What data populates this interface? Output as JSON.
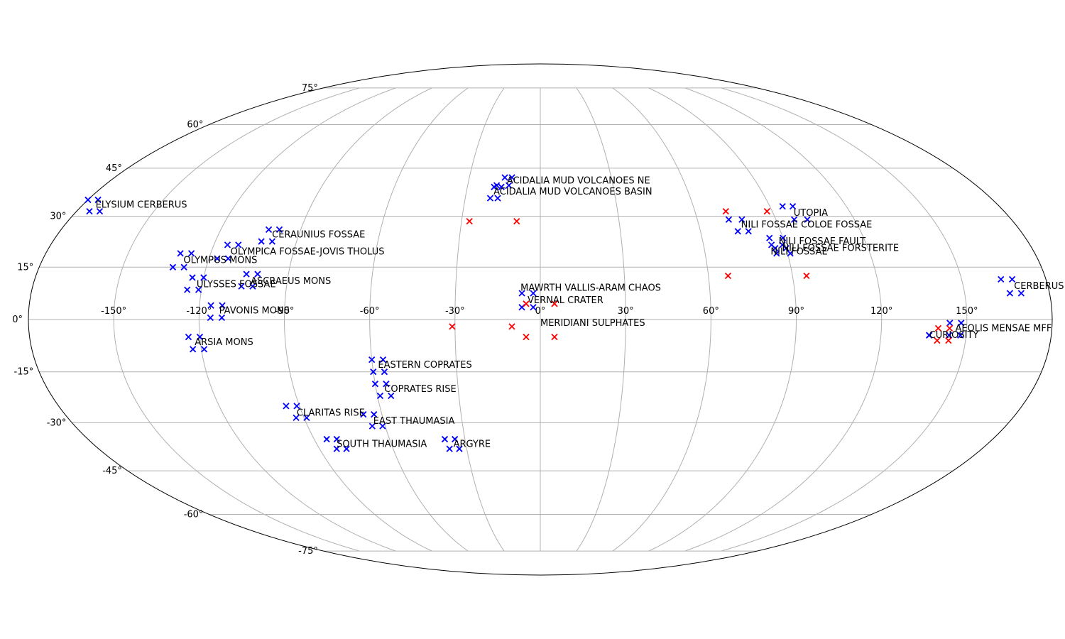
{
  "chart_data": {
    "type": "scatter",
    "projection": "mollweide",
    "grid": true,
    "x_ticks": [
      -150,
      -120,
      -90,
      -60,
      -30,
      0,
      30,
      60,
      90,
      120,
      150
    ],
    "y_ticks": [
      -75,
      -60,
      -45,
      -30,
      -15,
      0,
      15,
      30,
      45,
      60,
      75
    ],
    "x_tick_labels": [
      "-150°",
      "-120°",
      "-90°",
      "-60°",
      "-30°",
      "0°",
      "30°",
      "60°",
      "90°",
      "120°",
      "150°"
    ],
    "y_tick_labels": [
      "-75°",
      "-60°",
      "-45°",
      "-30°",
      "-15°",
      "0°",
      "15°",
      "30°",
      "45°",
      "60°",
      "75°"
    ],
    "colors": {
      "blue": "#0000ff",
      "red": "#ff0000",
      "grid": "#b0b0b0"
    },
    "marker": "x",
    "blue_groups": [
      {
        "label": "ACIDALIA MUD VOLCANOES NE",
        "lon": [
          -15,
          -12,
          -18,
          -13
        ],
        "lat": [
          42,
          42,
          39.5,
          39.5
        ],
        "label_lon": -14,
        "label_lat": 41
      },
      {
        "label": "ACIDALIA MUD VOLCANOES BASIN",
        "lon": [
          -19,
          -16,
          -20,
          -17
        ],
        "lat": [
          39,
          39,
          35.5,
          35.5
        ],
        "label_lon": -19,
        "label_lat": 37.5
      },
      {
        "label": "UTOPIA",
        "lon": [
          95,
          99,
          97,
          102
        ],
        "lat": [
          33,
          33,
          29,
          29
        ],
        "label_lon": 98,
        "label_lat": 31
      },
      {
        "label": "NILI FOSSAE COLOE FOSSAE",
        "lon": [
          72,
          77,
          74,
          78
        ],
        "lat": [
          29,
          29,
          25.5,
          25.5
        ],
        "label_lon": 76,
        "label_lat": 27.5
      },
      {
        "label": "NILI FOSSAE FAULT",
        "lon": [
          85,
          90,
          85,
          89
        ],
        "lat": [
          23.5,
          23.5,
          21.5,
          21.5
        ],
        "label_lon": 88,
        "label_lat": 22.5
      },
      {
        "label": "NILI FOSSAE FORSTERITE",
        "lon": [
          86,
          90
        ],
        "lat": [
          20.5,
          20.5
        ],
        "label_lon": 88.5,
        "label_lat": 20.5
      },
      {
        "label": "NILI FOSSAE",
        "lon": [
          86,
          91
        ],
        "lat": [
          19,
          19
        ],
        "label_lon": 84,
        "label_lat": 19.5
      },
      {
        "label": "ELYSIUM CERBERUS",
        "lon": [
          180,
          184,
          185,
          189
        ],
        "lat": [
          35,
          35,
          31.5,
          31.5
        ],
        "label_lon": 185,
        "label_lat": 33.5
      },
      {
        "label": "CERBERUS FOSSAE",
        "lon": [
          164,
          168,
          166,
          170
        ],
        "lat": [
          11.5,
          11.5,
          7.5,
          7.5
        ],
        "label_lon": 168,
        "label_lat": 9.5
      },
      {
        "label": "AEOLIS MENSAE MFF",
        "lon": [
          144,
          148,
          144,
          148
        ],
        "lat": [
          -1,
          -1,
          -4.5,
          -4.5
        ],
        "label_lon": 146,
        "label_lat": -2.5
      },
      {
        "label": "CURIOSITY",
        "lon": [
          137,
          137
        ],
        "lat": [
          -4.5,
          -4.5
        ],
        "label_lon": 137,
        "label_lat": -4.5
      },
      {
        "label": "MAWRTH VALLIS-ARAM CHAOS",
        "lon": [
          -6.5,
          -2.5,
          -6.5,
          -2.5
        ],
        "lat": [
          7.5,
          7.5,
          3.5,
          3.5
        ],
        "label_lon": -7,
        "label_lat": 9
      },
      {
        "label": "VERNAL CRATER",
        "lon": [],
        "lat": [],
        "label_lon": -4.5,
        "label_lat": 5.5
      },
      {
        "label": "MERIDIANI SULPHATES",
        "lon": [],
        "lat": [],
        "label_lon": 0,
        "label_lat": -1
      },
      {
        "label": "CERAUNIUS FOSSAE",
        "lon": [
          -102,
          -98,
          -103,
          -99
        ],
        "lat": [
          26,
          26,
          22.5,
          22.5
        ],
        "label_lon": -100,
        "label_lat": 24.5
      },
      {
        "label": "OLYMPICA FOSSAE-JOVIS THOLUS",
        "lon": [
          -115,
          -111,
          -117,
          -113
        ],
        "lat": [
          21.5,
          21.5,
          17.5,
          17.5
        ],
        "label_lon": -113,
        "label_lat": 19.5
      },
      {
        "label": "OLYMPUS MONS",
        "lon": [
          -131,
          -127,
          -132,
          -128
        ],
        "lat": [
          19,
          19,
          15,
          15
        ],
        "label_lon": -129,
        "label_lat": 17
      },
      {
        "label": "ASCRAEUS MONS",
        "lon": [
          -105,
          -101,
          -106,
          -102
        ],
        "lat": [
          13,
          13,
          9.5,
          9.5
        ],
        "label_lon": -103,
        "label_lat": 11
      },
      {
        "label": "ULYSSES FOSSAE",
        "lon": [
          -124,
          -120,
          -125,
          -121
        ],
        "lat": [
          12,
          12,
          8.5,
          8.5
        ],
        "label_lon": -122,
        "label_lat": 10
      },
      {
        "label": "PAVONIS MONS",
        "lon": [
          -116,
          -112,
          -116,
          -112
        ],
        "lat": [
          4,
          4,
          0.5,
          0.5
        ],
        "label_lon": -113,
        "label_lat": 2.5
      },
      {
        "label": "ARSIA MONS",
        "lon": [
          -124,
          -120,
          -123,
          -119
        ],
        "lat": [
          -5,
          -5,
          -8.5,
          -8.5
        ],
        "label_lon": -122,
        "label_lat": -6.5
      },
      {
        "label": "EASTERN COPRATES",
        "lon": [
          -60,
          -56,
          -60,
          -56
        ],
        "lat": [
          -11.5,
          -11.5,
          -15,
          -15
        ],
        "label_lon": -58,
        "label_lat": -13
      },
      {
        "label": "COPRATES RISE",
        "lon": [
          -60,
          -56,
          -59,
          -55
        ],
        "lat": [
          -18.5,
          -18.5,
          -22,
          -22
        ],
        "label_lon": -57,
        "label_lat": -20
      },
      {
        "label": "CLARITAS RISE",
        "lon": [
          -95,
          -91,
          -93,
          -89
        ],
        "lat": [
          -25,
          -25,
          -28.5,
          -28.5
        ],
        "label_lon": -92,
        "label_lat": -27
      },
      {
        "label": "EAST THAUMASIA",
        "lon": [
          -67,
          -63,
          -65,
          -61
        ],
        "lat": [
          -27.5,
          -27.5,
          -31,
          -31
        ],
        "label_lon": -64,
        "label_lat": -29.5
      },
      {
        "label": "SOUTH THAUMASIA",
        "lon": [
          -85,
          -81,
          -83,
          -79
        ],
        "lat": [
          -35,
          -35,
          -38,
          -38
        ],
        "label_lon": -82,
        "label_lat": -36.5
      },
      {
        "label": "ARGYRE",
        "lon": [
          -38,
          -34,
          -37,
          -33
        ],
        "lat": [
          -35,
          -35,
          -38,
          -38
        ],
        "label_lon": -35,
        "label_lat": -36.5
      }
    ],
    "red_points": {
      "lon": [
        -27,
        -9,
        72,
        88,
        67,
        95,
        -31,
        -10,
        -5,
        -5,
        5,
        5,
        140,
        144,
        140,
        144
      ],
      "lat": [
        28.5,
        28.5,
        31.5,
        31.5,
        12.5,
        12.5,
        -2,
        -2,
        4.5,
        -5,
        4.5,
        -5,
        -2.5,
        -2.5,
        -6,
        -6
      ]
    }
  }
}
